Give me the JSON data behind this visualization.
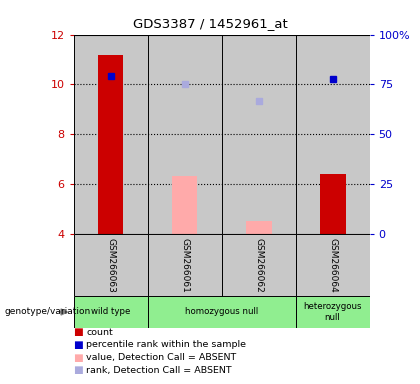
{
  "title": "GDS3387 / 1452961_at",
  "samples": [
    "GSM266063",
    "GSM266061",
    "GSM266062",
    "GSM266064"
  ],
  "ylim_left": [
    4,
    12
  ],
  "ylim_right": [
    0,
    100
  ],
  "yticks_left": [
    4,
    6,
    8,
    10,
    12
  ],
  "yticks_right": [
    0,
    25,
    50,
    75,
    100
  ],
  "ytick_labels_right": [
    "0",
    "25",
    "50",
    "75",
    "100%"
  ],
  "bar_bottoms": 4,
  "red_bars": [
    11.2,
    null,
    null,
    6.4
  ],
  "pink_bars": [
    null,
    6.35,
    4.55,
    null
  ],
  "blue_squares": [
    10.35,
    null,
    null,
    10.2
  ],
  "light_blue_squares": [
    null,
    10.0,
    9.35,
    null
  ],
  "groups": [
    {
      "label": "wild type",
      "start": 0,
      "end": 1
    },
    {
      "label": "homozygous null",
      "start": 1,
      "end": 3
    },
    {
      "label": "heterozygous\nnull",
      "start": 3,
      "end": 4
    }
  ],
  "red_color": "#cc0000",
  "pink_color": "#ffaaaa",
  "blue_color": "#0000cc",
  "light_blue_color": "#aaaadd",
  "gray_bg": "#c8c8c8",
  "green_bg": "#90EE90",
  "legend_colors": [
    "#cc0000",
    "#0000cc",
    "#ffaaaa",
    "#aaaadd"
  ],
  "legend_labels": [
    "count",
    "percentile rank within the sample",
    "value, Detection Call = ABSENT",
    "rank, Detection Call = ABSENT"
  ]
}
